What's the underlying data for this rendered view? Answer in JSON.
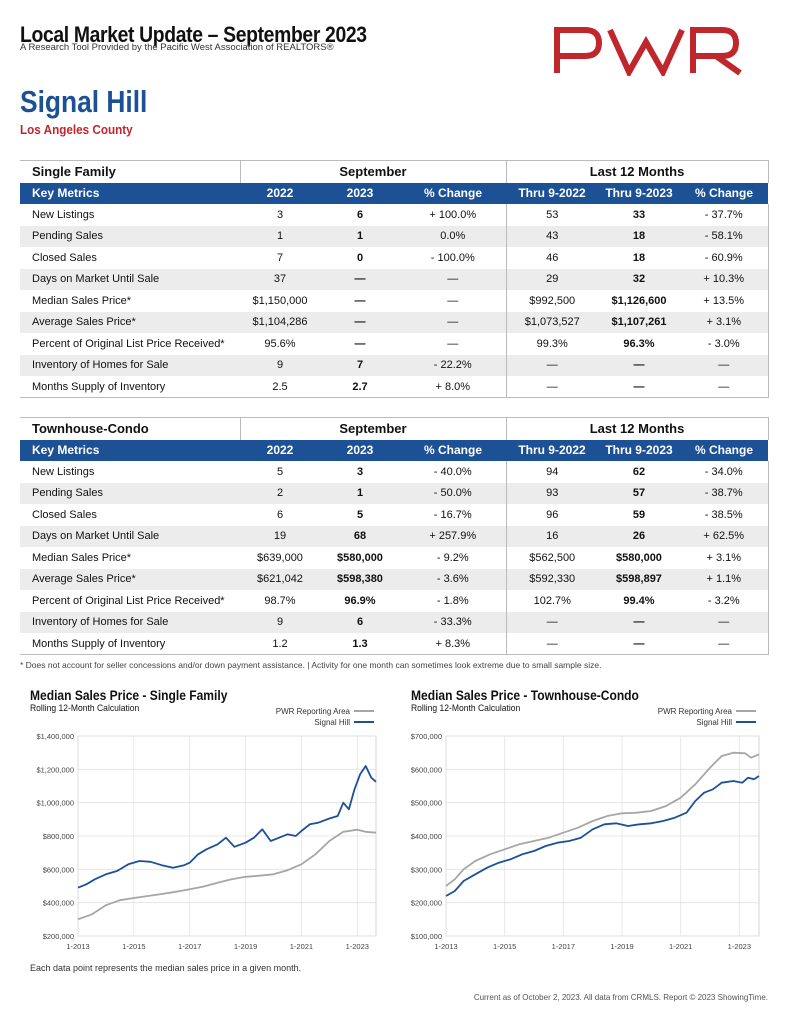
{
  "header": {
    "title": "Local Market Update – September 2023",
    "subtitle": "A Research Tool Provided by the Pacific West Association of REALTORS®",
    "logo_text": "PWR",
    "brand_color": "#c0272d",
    "accent_color": "#1c5196",
    "city": "Signal Hill",
    "county": "Los Angeles County"
  },
  "tables": [
    {
      "section": "Single Family",
      "group_september": "September",
      "group_last12": "Last 12 Months",
      "columns": [
        "Key Metrics",
        "2022",
        "2023",
        "% Change",
        "Thru 9-2022",
        "Thru 9-2023",
        "% Change"
      ],
      "rows": [
        [
          "New Listings",
          "3",
          "6",
          "+ 100.0%",
          "53",
          "33",
          "- 37.7%"
        ],
        [
          "Pending Sales",
          "1",
          "1",
          "0.0%",
          "43",
          "18",
          "- 58.1%"
        ],
        [
          "Closed Sales",
          "7",
          "0",
          "- 100.0%",
          "46",
          "18",
          "- 60.9%"
        ],
        [
          "Days on Market Until Sale",
          "37",
          "—",
          "—",
          "29",
          "32",
          "+ 10.3%"
        ],
        [
          "Median Sales Price*",
          "$1,150,000",
          "—",
          "—",
          "$992,500",
          "$1,126,600",
          "+ 13.5%"
        ],
        [
          "Average Sales Price*",
          "$1,104,286",
          "—",
          "—",
          "$1,073,527",
          "$1,107,261",
          "+ 3.1%"
        ],
        [
          "Percent of Original List Price Received*",
          "95.6%",
          "—",
          "—",
          "99.3%",
          "96.3%",
          "- 3.0%"
        ],
        [
          "Inventory of Homes for Sale",
          "9",
          "7",
          "- 22.2%",
          "—",
          "—",
          "—"
        ],
        [
          "Months Supply of Inventory",
          "2.5",
          "2.7",
          "+ 8.0%",
          "—",
          "—",
          "—"
        ]
      ]
    },
    {
      "section": "Townhouse-Condo",
      "group_september": "September",
      "group_last12": "Last 12 Months",
      "columns": [
        "Key Metrics",
        "2022",
        "2023",
        "% Change",
        "Thru 9-2022",
        "Thru 9-2023",
        "% Change"
      ],
      "rows": [
        [
          "New Listings",
          "5",
          "3",
          "- 40.0%",
          "94",
          "62",
          "- 34.0%"
        ],
        [
          "Pending Sales",
          "2",
          "1",
          "- 50.0%",
          "93",
          "57",
          "- 38.7%"
        ],
        [
          "Closed Sales",
          "6",
          "5",
          "- 16.7%",
          "96",
          "59",
          "- 38.5%"
        ],
        [
          "Days on Market Until Sale",
          "19",
          "68",
          "+ 257.9%",
          "16",
          "26",
          "+ 62.5%"
        ],
        [
          "Median Sales Price*",
          "$639,000",
          "$580,000",
          "- 9.2%",
          "$562,500",
          "$580,000",
          "+ 3.1%"
        ],
        [
          "Average Sales Price*",
          "$621,042",
          "$598,380",
          "- 3.6%",
          "$592,330",
          "$598,897",
          "+ 1.1%"
        ],
        [
          "Percent of Original List Price Received*",
          "98.7%",
          "96.9%",
          "- 1.8%",
          "102.7%",
          "99.4%",
          "- 3.2%"
        ],
        [
          "Inventory of Homes for Sale",
          "9",
          "6",
          "- 33.3%",
          "—",
          "—",
          "—"
        ],
        [
          "Months Supply of Inventory",
          "1.2",
          "1.3",
          "+ 8.3%",
          "—",
          "—",
          "—"
        ]
      ]
    }
  ],
  "footnote": "* Does not account for seller concessions and/or down payment assistance. | Activity for one month can sometimes look extreme due to small sample size.",
  "chart_data": [
    {
      "type": "line",
      "title": "Median Sales Price - Single Family",
      "subtitle": "Rolling 12-Month Calculation",
      "ylim": [
        200000,
        1400000
      ],
      "yticks": [
        "$200,000",
        "$400,000",
        "$600,000",
        "$800,000",
        "$1,000,000",
        "$1,200,000",
        "$1,400,000"
      ],
      "ytick_values": [
        200000,
        400000,
        600000,
        800000,
        1000000,
        1200000,
        1400000
      ],
      "xticks": [
        "1-2013",
        "1-2015",
        "1-2017",
        "1-2019",
        "1-2021",
        "1-2023"
      ],
      "xtick_values": [
        2013,
        2015,
        2017,
        2019,
        2021,
        2023
      ],
      "xlim": [
        2013,
        2023.67
      ],
      "grid": true,
      "legend_position": "top-right",
      "series": [
        {
          "name": "PWR Reporting Area",
          "color": "#a6a6a6",
          "points": [
            [
              2013,
              300000
            ],
            [
              2013.5,
              330000
            ],
            [
              2014,
              385000
            ],
            [
              2014.5,
              415000
            ],
            [
              2015,
              428000
            ],
            [
              2015.5,
              440000
            ],
            [
              2016,
              452000
            ],
            [
              2016.5,
              465000
            ],
            [
              2017,
              480000
            ],
            [
              2017.5,
              497000
            ],
            [
              2018,
              520000
            ],
            [
              2018.5,
              540000
            ],
            [
              2019,
              555000
            ],
            [
              2019.5,
              562000
            ],
            [
              2020,
              570000
            ],
            [
              2020.5,
              595000
            ],
            [
              2021,
              630000
            ],
            [
              2021.5,
              690000
            ],
            [
              2022,
              770000
            ],
            [
              2022.5,
              825000
            ],
            [
              2023,
              838000
            ],
            [
              2023.3,
              825000
            ],
            [
              2023.67,
              820000
            ]
          ]
        },
        {
          "name": "Signal Hill",
          "color": "#1c5196",
          "points": [
            [
              2013,
              490000
            ],
            [
              2013.3,
              510000
            ],
            [
              2013.6,
              540000
            ],
            [
              2014,
              570000
            ],
            [
              2014.4,
              590000
            ],
            [
              2014.8,
              630000
            ],
            [
              2015.2,
              650000
            ],
            [
              2015.6,
              645000
            ],
            [
              2016,
              625000
            ],
            [
              2016.4,
              610000
            ],
            [
              2016.8,
              625000
            ],
            [
              2017,
              640000
            ],
            [
              2017.3,
              690000
            ],
            [
              2017.6,
              720000
            ],
            [
              2018,
              750000
            ],
            [
              2018.3,
              790000
            ],
            [
              2018.6,
              735000
            ],
            [
              2019,
              760000
            ],
            [
              2019.3,
              790000
            ],
            [
              2019.6,
              840000
            ],
            [
              2019.9,
              770000
            ],
            [
              2020.2,
              790000
            ],
            [
              2020.5,
              810000
            ],
            [
              2020.8,
              800000
            ],
            [
              2021,
              830000
            ],
            [
              2021.3,
              870000
            ],
            [
              2021.6,
              880000
            ],
            [
              2022,
              905000
            ],
            [
              2022.3,
              920000
            ],
            [
              2022.5,
              1000000
            ],
            [
              2022.7,
              960000
            ],
            [
              2022.9,
              1080000
            ],
            [
              2023.1,
              1170000
            ],
            [
              2023.3,
              1220000
            ],
            [
              2023.5,
              1150000
            ],
            [
              2023.67,
              1125000
            ]
          ]
        }
      ]
    },
    {
      "type": "line",
      "title": "Median Sales Price - Townhouse-Condo",
      "subtitle": "Rolling 12-Month Calculation",
      "ylim": [
        100000,
        700000
      ],
      "yticks": [
        "$100,000",
        "$200,000",
        "$300,000",
        "$400,000",
        "$500,000",
        "$600,000",
        "$700,000"
      ],
      "ytick_values": [
        100000,
        200000,
        300000,
        400000,
        500000,
        600000,
        700000
      ],
      "xticks": [
        "1-2013",
        "1-2015",
        "1-2017",
        "1-2019",
        "1-2021",
        "1-2023"
      ],
      "xtick_values": [
        2013,
        2015,
        2017,
        2019,
        2021,
        2023
      ],
      "xlim": [
        2013,
        2023.67
      ],
      "grid": true,
      "legend_position": "top-right",
      "series": [
        {
          "name": "PWR Reporting Area",
          "color": "#a6a6a6",
          "points": [
            [
              2013,
              250000
            ],
            [
              2013.3,
              270000
            ],
            [
              2013.6,
              300000
            ],
            [
              2014,
              325000
            ],
            [
              2014.5,
              345000
            ],
            [
              2015,
              360000
            ],
            [
              2015.5,
              375000
            ],
            [
              2016,
              385000
            ],
            [
              2016.5,
              395000
            ],
            [
              2017,
              410000
            ],
            [
              2017.5,
              425000
            ],
            [
              2018,
              445000
            ],
            [
              2018.5,
              460000
            ],
            [
              2019,
              468000
            ],
            [
              2019.5,
              470000
            ],
            [
              2020,
              475000
            ],
            [
              2020.5,
              490000
            ],
            [
              2021,
              515000
            ],
            [
              2021.5,
              555000
            ],
            [
              2022,
              605000
            ],
            [
              2022.4,
              640000
            ],
            [
              2022.8,
              650000
            ],
            [
              2023.2,
              648000
            ],
            [
              2023.4,
              635000
            ],
            [
              2023.67,
              645000
            ]
          ]
        },
        {
          "name": "Signal Hill",
          "color": "#1c5196",
          "points": [
            [
              2013,
              220000
            ],
            [
              2013.3,
              235000
            ],
            [
              2013.6,
              265000
            ],
            [
              2014,
              285000
            ],
            [
              2014.4,
              305000
            ],
            [
              2014.8,
              320000
            ],
            [
              2015.2,
              330000
            ],
            [
              2015.6,
              345000
            ],
            [
              2016,
              355000
            ],
            [
              2016.4,
              370000
            ],
            [
              2016.8,
              380000
            ],
            [
              2017.2,
              385000
            ],
            [
              2017.6,
              395000
            ],
            [
              2018,
              420000
            ],
            [
              2018.4,
              435000
            ],
            [
              2018.8,
              438000
            ],
            [
              2019.2,
              430000
            ],
            [
              2019.6,
              435000
            ],
            [
              2020,
              438000
            ],
            [
              2020.4,
              445000
            ],
            [
              2020.8,
              455000
            ],
            [
              2021.2,
              470000
            ],
            [
              2021.5,
              505000
            ],
            [
              2021.8,
              530000
            ],
            [
              2022.1,
              540000
            ],
            [
              2022.4,
              560000
            ],
            [
              2022.8,
              565000
            ],
            [
              2023.1,
              560000
            ],
            [
              2023.3,
              575000
            ],
            [
              2023.5,
              570000
            ],
            [
              2023.67,
              580000
            ]
          ]
        }
      ]
    }
  ],
  "chart_note": "Each data point represents the median sales price in a given month.",
  "copyright": "Current as of October 2, 2023. All data from CRMLS. Report © 2023 ShowingTime."
}
